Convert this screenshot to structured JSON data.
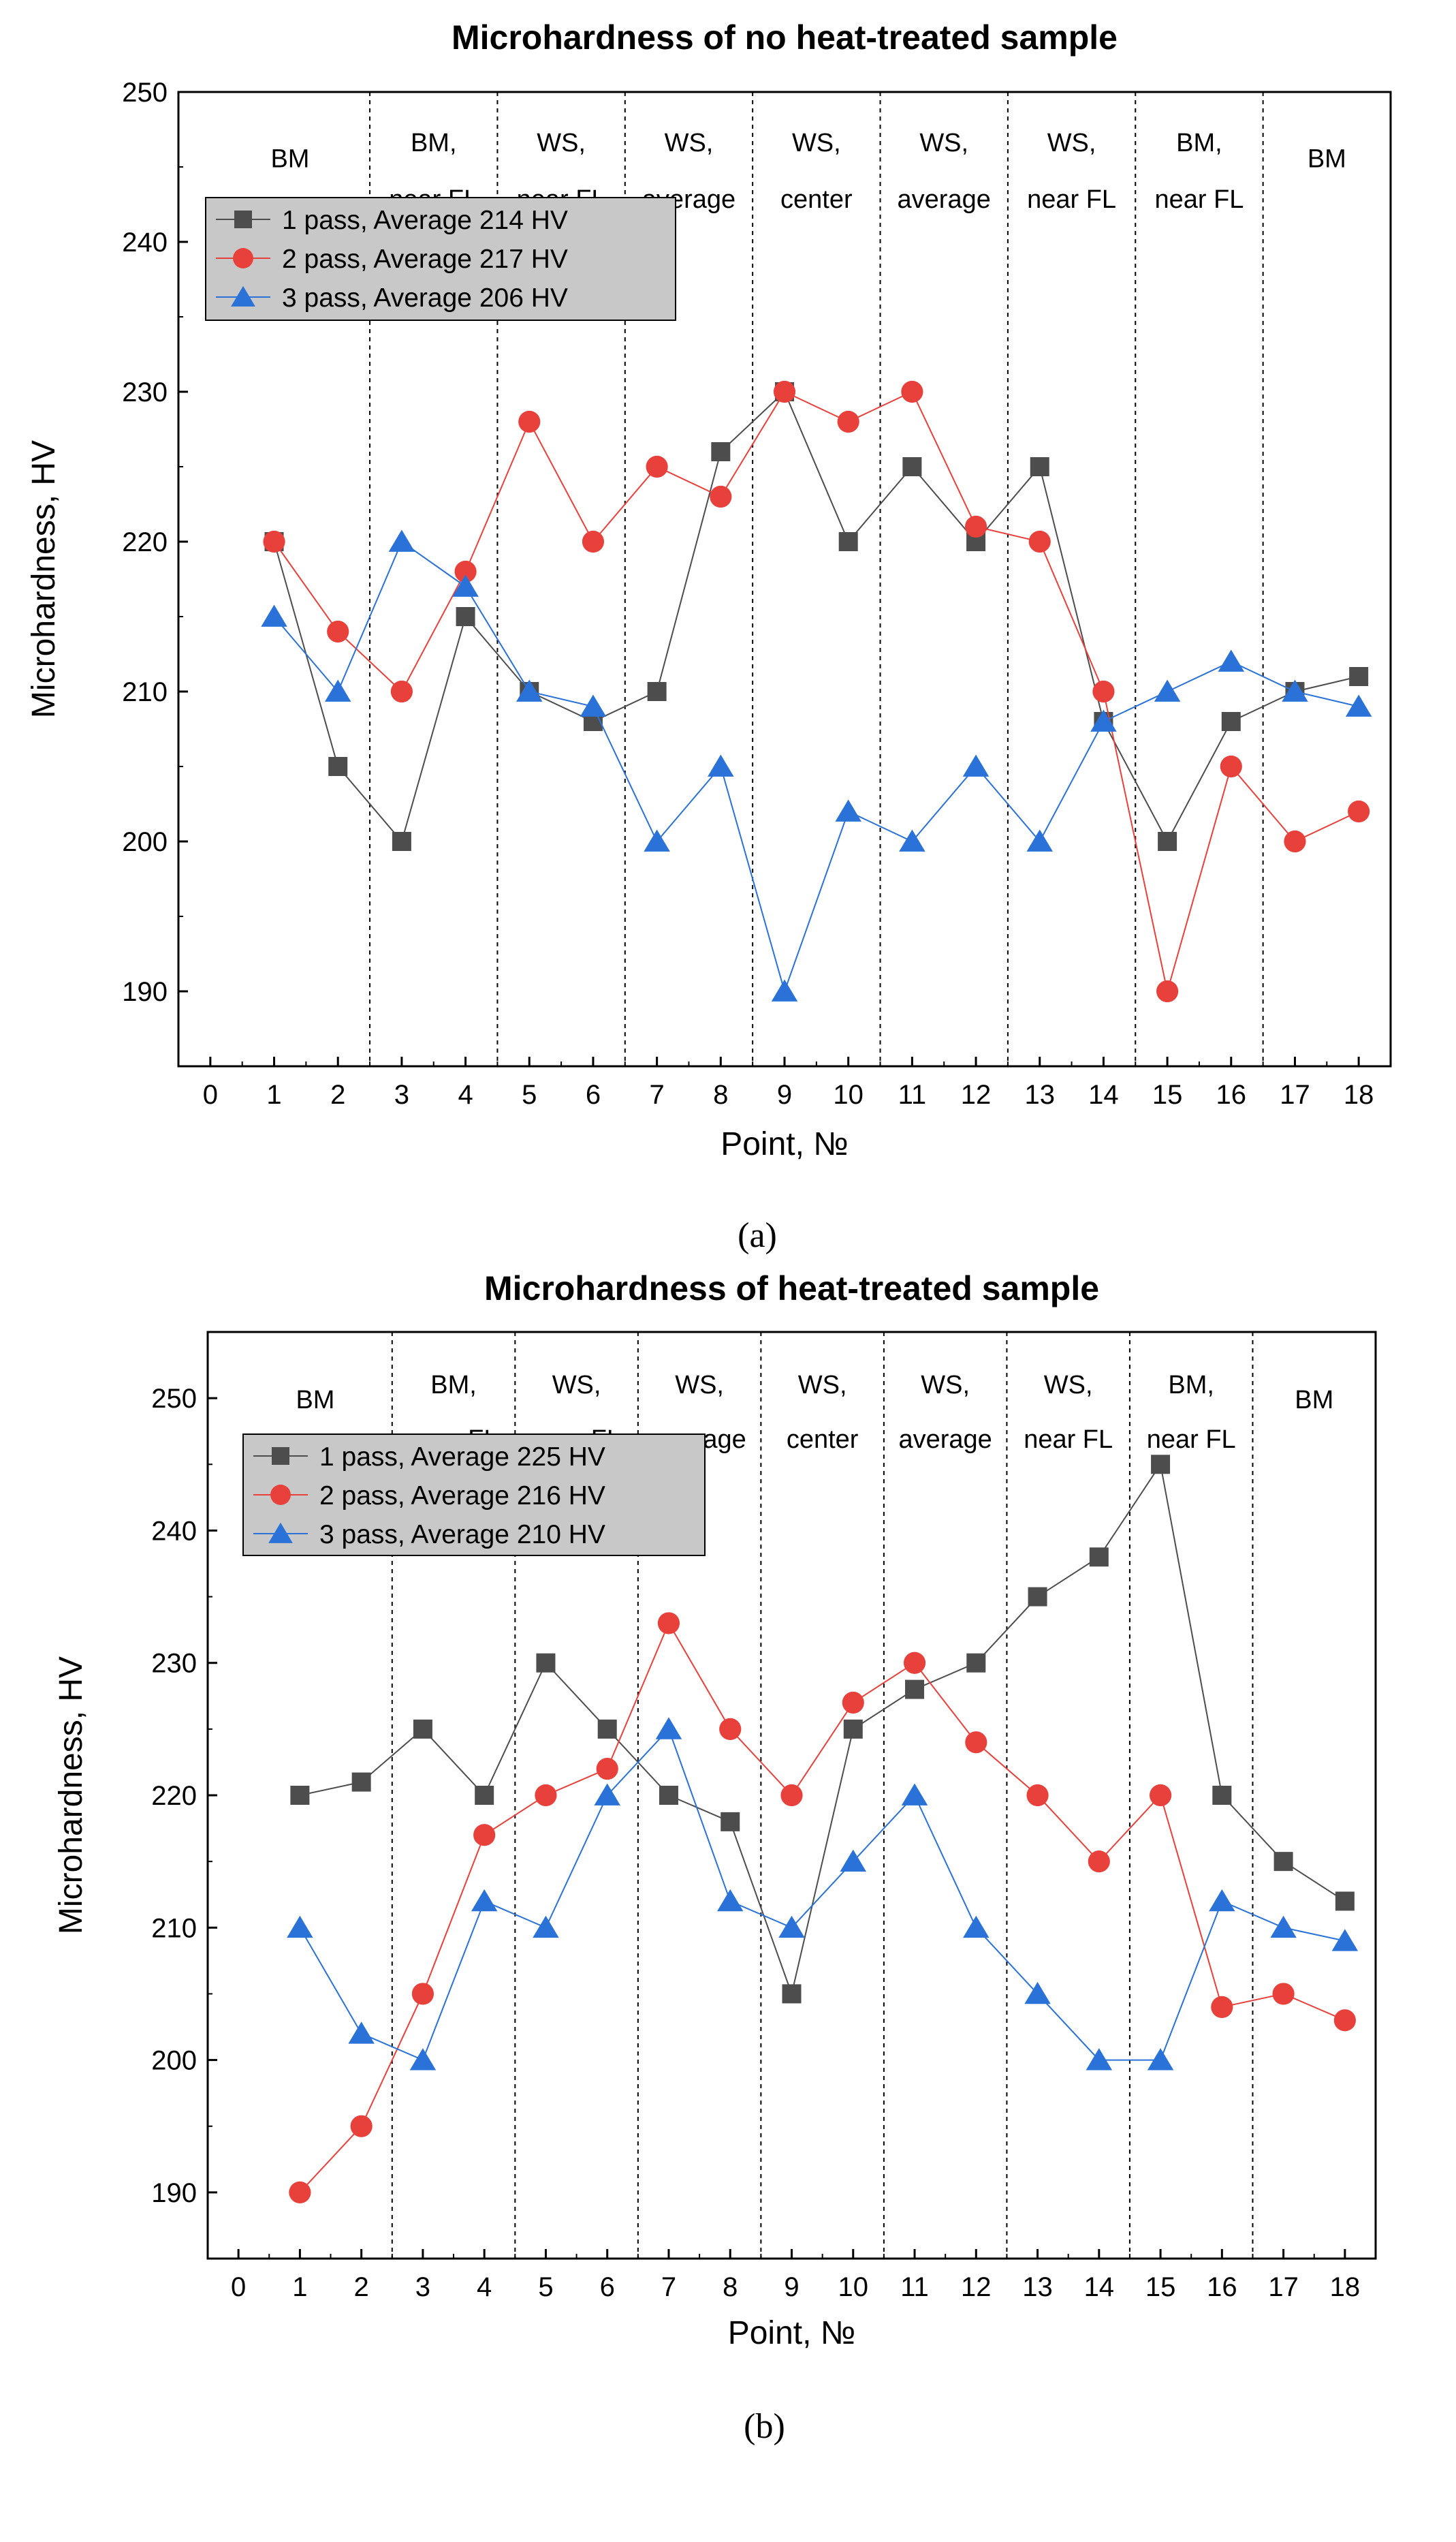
{
  "chart_data": [
    {
      "type": "line",
      "title": "Microhardness of  no heat-treated sample",
      "xlabel": "Point, №",
      "ylabel": "Microhardness, HV",
      "caption": "(a)",
      "xlim": [
        0,
        18
      ],
      "ylim": [
        185,
        250
      ],
      "xticks": [
        "0",
        "1",
        "2",
        "3",
        "4",
        "5",
        "6",
        "7",
        "8",
        "9",
        "10",
        "11",
        "12",
        "13",
        "14",
        "15",
        "16",
        "17",
        "18"
      ],
      "yticks": [
        "190",
        "200",
        "210",
        "220",
        "230",
        "240",
        "250"
      ],
      "grid": false,
      "legend_position": "top-left",
      "regions": [
        {
          "lines": [
            "BM"
          ],
          "from": 0,
          "to": 2.5
        },
        {
          "lines": [
            "BM,",
            "near FL"
          ],
          "from": 2.5,
          "to": 4.5
        },
        {
          "lines": [
            "WS,",
            "near FL"
          ],
          "from": 4.5,
          "to": 6.5
        },
        {
          "lines": [
            "WS,",
            "average"
          ],
          "from": 6.5,
          "to": 8.5
        },
        {
          "lines": [
            "WS,",
            "center"
          ],
          "from": 8.5,
          "to": 10.5
        },
        {
          "lines": [
            "WS,",
            "average"
          ],
          "from": 10.5,
          "to": 12.5
        },
        {
          "lines": [
            "WS,",
            "near FL"
          ],
          "from": 12.5,
          "to": 14.5
        },
        {
          "lines": [
            "BM,",
            "near FL"
          ],
          "from": 14.5,
          "to": 16.5
        },
        {
          "lines": [
            "BM"
          ],
          "from": 16.5,
          "to": 18.5
        }
      ],
      "x": [
        1,
        2,
        3,
        4,
        5,
        6,
        7,
        8,
        9,
        10,
        11,
        12,
        13,
        14,
        15,
        16,
        17,
        18
      ],
      "series": [
        {
          "name": "1 pass, Average 214 HV",
          "color": "#4d4d4d",
          "marker": "square",
          "values": [
            220,
            205,
            200,
            215,
            210,
            208,
            210,
            226,
            230,
            220,
            225,
            220,
            225,
            208,
            200,
            208,
            210,
            211
          ]
        },
        {
          "name": "2 pass, Average 217 HV",
          "color": "#e8403a",
          "marker": "circle",
          "values": [
            220,
            214,
            210,
            218,
            228,
            220,
            225,
            223,
            230,
            228,
            230,
            221,
            220,
            210,
            190,
            205,
            200,
            202
          ]
        },
        {
          "name": "3 pass, Average 206 HV",
          "color": "#2a72d8",
          "marker": "triangle",
          "values": [
            215,
            210,
            220,
            217,
            210,
            209,
            200,
            205,
            190,
            202,
            200,
            205,
            200,
            208,
            210,
            212,
            210,
            209
          ]
        }
      ]
    },
    {
      "type": "line",
      "title": "Microhardness of heat-treated  sample",
      "xlabel": "Point, №",
      "ylabel": "Microhardness, HV",
      "caption": "(b)",
      "xlim": [
        0,
        18
      ],
      "ylim": [
        185,
        255
      ],
      "xticks": [
        "0",
        "1",
        "2",
        "3",
        "4",
        "5",
        "6",
        "7",
        "8",
        "9",
        "10",
        "11",
        "12",
        "13",
        "14",
        "15",
        "16",
        "17",
        "18"
      ],
      "yticks": [
        "190",
        "200",
        "210",
        "220",
        "230",
        "240",
        "250"
      ],
      "grid": false,
      "legend_position": "top-left",
      "regions": [
        {
          "lines": [
            "BM"
          ],
          "from": 0,
          "to": 2.5
        },
        {
          "lines": [
            "BM,",
            "near FL"
          ],
          "from": 2.5,
          "to": 4.5
        },
        {
          "lines": [
            "WS,",
            "near FL"
          ],
          "from": 4.5,
          "to": 6.5
        },
        {
          "lines": [
            "WS,",
            "average"
          ],
          "from": 6.5,
          "to": 8.5
        },
        {
          "lines": [
            "WS,",
            "center"
          ],
          "from": 8.5,
          "to": 10.5
        },
        {
          "lines": [
            "WS,",
            "average"
          ],
          "from": 10.5,
          "to": 12.5
        },
        {
          "lines": [
            "WS,",
            "near FL"
          ],
          "from": 12.5,
          "to": 14.5
        },
        {
          "lines": [
            "BM,",
            "near FL"
          ],
          "from": 14.5,
          "to": 16.5
        },
        {
          "lines": [
            "BM"
          ],
          "from": 16.5,
          "to": 18.5
        }
      ],
      "x": [
        1,
        2,
        3,
        4,
        5,
        6,
        7,
        8,
        9,
        10,
        11,
        12,
        13,
        14,
        15,
        16,
        17,
        18
      ],
      "series": [
        {
          "name": "1 pass, Average 225 HV",
          "color": "#4d4d4d",
          "marker": "square",
          "values": [
            220,
            221,
            225,
            220,
            230,
            225,
            220,
            218,
            205,
            225,
            228,
            230,
            235,
            238,
            245,
            220,
            215,
            212
          ]
        },
        {
          "name": "2 pass, Average 216 HV",
          "color": "#e8403a",
          "marker": "circle",
          "values": [
            190,
            195,
            205,
            217,
            220,
            222,
            233,
            225,
            220,
            227,
            230,
            224,
            220,
            215,
            220,
            204,
            205,
            203
          ]
        },
        {
          "name": "3 pass, Average 210 HV",
          "color": "#2a72d8",
          "marker": "triangle",
          "values": [
            210,
            202,
            200,
            212,
            210,
            220,
            225,
            212,
            210,
            215,
            220,
            210,
            205,
            200,
            200,
            212,
            210,
            209
          ]
        }
      ]
    }
  ]
}
